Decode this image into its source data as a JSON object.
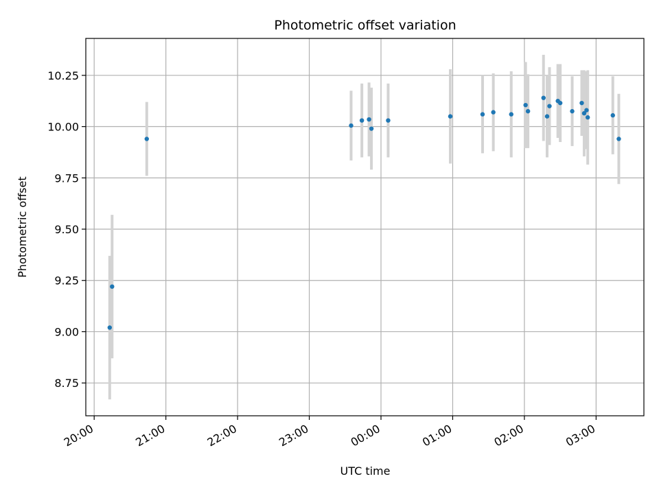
{
  "chart_data": {
    "type": "scatter",
    "title": "Photometric offset variation",
    "xlabel": "UTC time",
    "ylabel": "Photometric offset",
    "x_axis_kind": "time",
    "x_tick_labels": [
      "20:00",
      "21:00",
      "22:00",
      "23:00",
      "00:00",
      "01:00",
      "02:00",
      "03:00"
    ],
    "x_tick_times": [
      "20:00",
      "21:00",
      "22:00",
      "23:00",
      "24:00",
      "25:00",
      "26:00",
      "27:00"
    ],
    "xlim": [
      "19:53",
      "27:40"
    ],
    "y_tick_labels": [
      "8.75",
      "9.00",
      "9.25",
      "9.50",
      "9.75",
      "10.00",
      "10.25"
    ],
    "y_ticks": [
      8.75,
      9.0,
      9.25,
      9.5,
      9.75,
      10.0,
      10.25
    ],
    "ylim": [
      8.59,
      10.43
    ],
    "grid": true,
    "marker_color": "#1f77b4",
    "errorbar_color": "#d3d3d3",
    "points": [
      {
        "t": "20:13",
        "y": 9.02,
        "err": 0.35
      },
      {
        "t": "20:15",
        "y": 9.22,
        "err": 0.35
      },
      {
        "t": "20:44",
        "y": 9.94,
        "err": 0.18
      },
      {
        "t": "23:35",
        "y": 10.005,
        "err": 0.17
      },
      {
        "t": "23:44",
        "y": 10.03,
        "err": 0.18
      },
      {
        "t": "23:50",
        "y": 10.035,
        "err": 0.18
      },
      {
        "t": "23:52",
        "y": 9.99,
        "err": 0.2
      },
      {
        "t": "24:06",
        "y": 10.03,
        "err": 0.18
      },
      {
        "t": "24:58",
        "y": 10.05,
        "err": 0.23
      },
      {
        "t": "25:25",
        "y": 10.06,
        "err": 0.19
      },
      {
        "t": "25:34",
        "y": 10.07,
        "err": 0.19
      },
      {
        "t": "25:49",
        "y": 10.06,
        "err": 0.21
      },
      {
        "t": "26:01",
        "y": 10.105,
        "err": 0.21
      },
      {
        "t": "26:03",
        "y": 10.075,
        "err": 0.18
      },
      {
        "t": "26:16",
        "y": 10.14,
        "err": 0.21
      },
      {
        "t": "26:19",
        "y": 10.05,
        "err": 0.2
      },
      {
        "t": "26:21",
        "y": 10.1,
        "err": 0.19
      },
      {
        "t": "26:28",
        "y": 10.125,
        "err": 0.18
      },
      {
        "t": "26:30",
        "y": 10.115,
        "err": 0.19
      },
      {
        "t": "26:40",
        "y": 10.075,
        "err": 0.17
      },
      {
        "t": "26:48",
        "y": 10.115,
        "err": 0.16
      },
      {
        "t": "26:50",
        "y": 10.065,
        "err": 0.21
      },
      {
        "t": "26:52",
        "y": 10.08,
        "err": 0.19
      },
      {
        "t": "26:53",
        "y": 10.045,
        "err": 0.23
      },
      {
        "t": "27:14",
        "y": 10.055,
        "err": 0.19
      },
      {
        "t": "27:19",
        "y": 9.94,
        "err": 0.22
      }
    ]
  }
}
